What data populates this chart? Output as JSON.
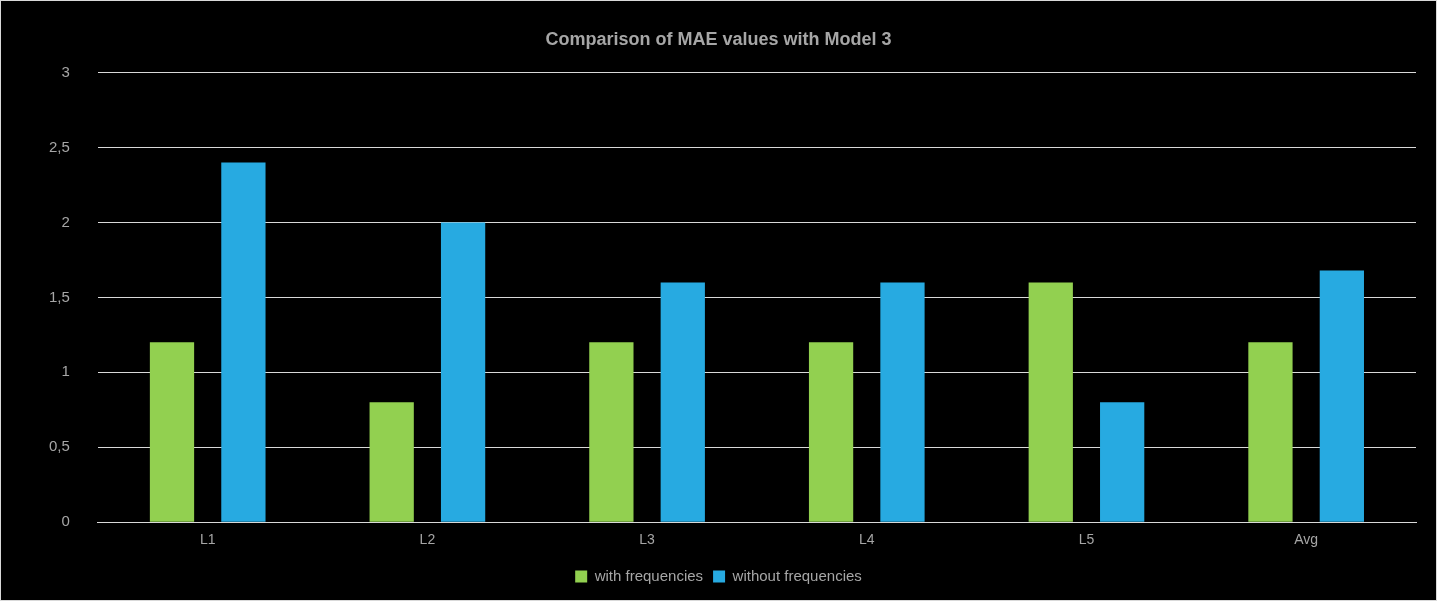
{
  "chart_data": {
    "type": "bar",
    "title": "Comparison of MAE values with Model 3",
    "categories": [
      "L1",
      "L2",
      "L3",
      "L4",
      "L5",
      "Avg"
    ],
    "series": [
      {
        "name": "with frequencies",
        "color": "#92d050",
        "values": [
          1.2,
          0.8,
          1.2,
          1.2,
          1.6,
          1.2
        ]
      },
      {
        "name": "without frequencies",
        "color": "#27aae1",
        "values": [
          2.4,
          2.0,
          1.6,
          1.6,
          0.8,
          1.68
        ]
      }
    ],
    "ylim": [
      0,
      3
    ],
    "yticks": [
      0,
      {
        "value": 0.5,
        "label": "0,5"
      },
      1,
      {
        "value": 1.5,
        "label": "1,5"
      },
      2,
      {
        "value": 2.5,
        "label": "2,5"
      },
      3
    ],
    "grid": "y",
    "legend": "bottom"
  }
}
